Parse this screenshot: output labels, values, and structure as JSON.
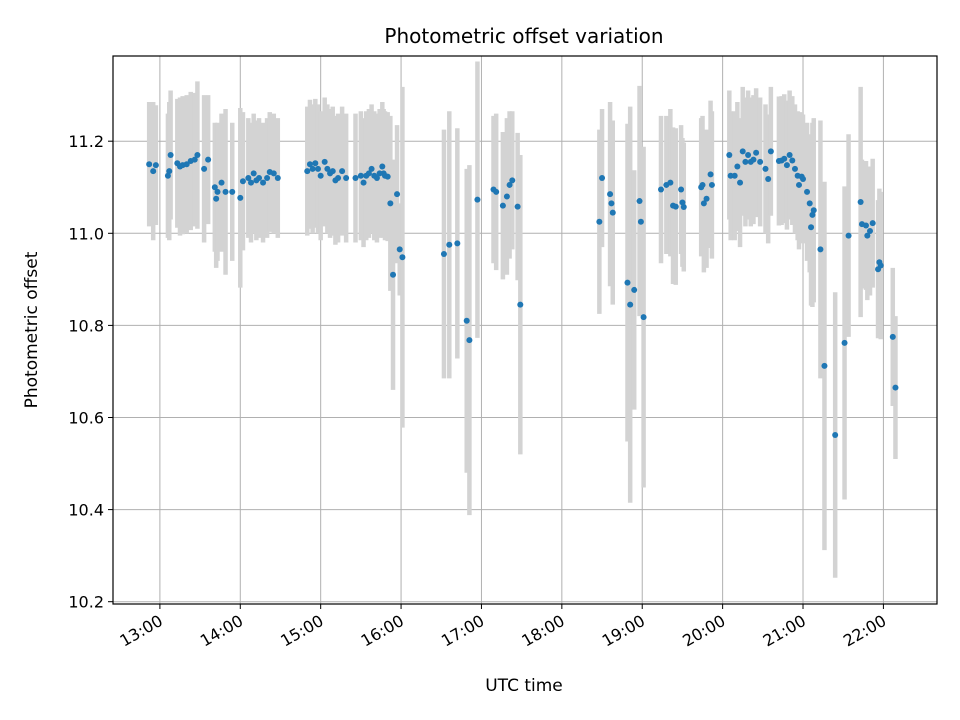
{
  "chart_data": {
    "type": "scatter",
    "title": "Photometric offset variation",
    "xlabel": "UTC time",
    "ylabel": "Photometric offset",
    "xlim": [
      "12:25",
      "22:40"
    ],
    "ylim": [
      10.195,
      11.385
    ],
    "grid": true,
    "x_ticks": [
      "13:00",
      "14:00",
      "15:00",
      "16:00",
      "17:00",
      "18:00",
      "19:00",
      "20:00",
      "21:00",
      "22:00"
    ],
    "y_ticks": [
      "10.2",
      "10.4",
      "10.6",
      "10.8",
      "11.0",
      "11.2"
    ],
    "colors": {
      "points": "#1f77b4",
      "error_bars": "#d3d3d3",
      "grid": "#b0b0b0"
    },
    "series": [
      {
        "points": [
          {
            "x": "12:52",
            "y": 11.15,
            "err": 0.135
          },
          {
            "x": "12:55",
            "y": 11.135,
            "err": 0.15
          },
          {
            "x": "12:57",
            "y": 11.148,
            "err": 0.13
          },
          {
            "x": "13:06",
            "y": 11.125,
            "err": 0.135
          },
          {
            "x": "13:07",
            "y": 11.135,
            "err": 0.15
          },
          {
            "x": "13:08",
            "y": 11.17,
            "err": 0.14
          },
          {
            "x": "13:13",
            "y": 11.152,
            "err": 0.14
          },
          {
            "x": "13:15",
            "y": 11.145,
            "err": 0.15
          },
          {
            "x": "13:17",
            "y": 11.148,
            "err": 0.15
          },
          {
            "x": "13:20",
            "y": 11.15,
            "err": 0.15
          },
          {
            "x": "13:23",
            "y": 11.157,
            "err": 0.15
          },
          {
            "x": "13:26",
            "y": 11.16,
            "err": 0.145
          },
          {
            "x": "13:28",
            "y": 11.17,
            "err": 0.16
          },
          {
            "x": "13:33",
            "y": 11.14,
            "err": 0.16
          },
          {
            "x": "13:36",
            "y": 11.16,
            "err": 0.14
          },
          {
            "x": "13:41",
            "y": 11.1,
            "err": 0.14
          },
          {
            "x": "13:42",
            "y": 11.075,
            "err": 0.15
          },
          {
            "x": "13:43",
            "y": 11.09,
            "err": 0.15
          },
          {
            "x": "13:46",
            "y": 11.11,
            "err": 0.15
          },
          {
            "x": "13:49",
            "y": 11.09,
            "err": 0.18
          },
          {
            "x": "13:54",
            "y": 11.09,
            "err": 0.15
          },
          {
            "x": "14:00",
            "y": 11.077,
            "err": 0.195
          },
          {
            "x": "14:02",
            "y": 11.113,
            "err": 0.15
          },
          {
            "x": "14:06",
            "y": 11.12,
            "err": 0.13
          },
          {
            "x": "14:08",
            "y": 11.11,
            "err": 0.13
          },
          {
            "x": "14:10",
            "y": 11.13,
            "err": 0.13
          },
          {
            "x": "14:12",
            "y": 11.115,
            "err": 0.13
          },
          {
            "x": "14:14",
            "y": 11.12,
            "err": 0.13
          },
          {
            "x": "14:17",
            "y": 11.11,
            "err": 0.13
          },
          {
            "x": "14:20",
            "y": 11.12,
            "err": 0.13
          },
          {
            "x": "14:22",
            "y": 11.133,
            "err": 0.13
          },
          {
            "x": "14:25",
            "y": 11.13,
            "err": 0.13
          },
          {
            "x": "14:28",
            "y": 11.12,
            "err": 0.13
          },
          {
            "x": "14:50",
            "y": 11.135,
            "err": 0.14
          },
          {
            "x": "14:52",
            "y": 11.15,
            "err": 0.14
          },
          {
            "x": "14:54",
            "y": 11.14,
            "err": 0.14
          },
          {
            "x": "14:56",
            "y": 11.152,
            "err": 0.14
          },
          {
            "x": "14:58",
            "y": 11.14,
            "err": 0.14
          },
          {
            "x": "15:00",
            "y": 11.125,
            "err": 0.14
          },
          {
            "x": "15:03",
            "y": 11.155,
            "err": 0.14
          },
          {
            "x": "15:05",
            "y": 11.14,
            "err": 0.14
          },
          {
            "x": "15:07",
            "y": 11.13,
            "err": 0.14
          },
          {
            "x": "15:09",
            "y": 11.135,
            "err": 0.14
          },
          {
            "x": "15:11",
            "y": 11.115,
            "err": 0.14
          },
          {
            "x": "15:13",
            "y": 11.12,
            "err": 0.14
          },
          {
            "x": "15:16",
            "y": 11.135,
            "err": 0.14
          },
          {
            "x": "15:19",
            "y": 11.12,
            "err": 0.14
          },
          {
            "x": "15:26",
            "y": 11.12,
            "err": 0.14
          },
          {
            "x": "15:30",
            "y": 11.125,
            "err": 0.14
          },
          {
            "x": "15:32",
            "y": 11.11,
            "err": 0.14
          },
          {
            "x": "15:34",
            "y": 11.125,
            "err": 0.14
          },
          {
            "x": "15:36",
            "y": 11.13,
            "err": 0.14
          },
          {
            "x": "15:38",
            "y": 11.14,
            "err": 0.14
          },
          {
            "x": "15:40",
            "y": 11.125,
            "err": 0.14
          },
          {
            "x": "15:42",
            "y": 11.12,
            "err": 0.14
          },
          {
            "x": "15:44",
            "y": 11.13,
            "err": 0.14
          },
          {
            "x": "15:46",
            "y": 11.145,
            "err": 0.14
          },
          {
            "x": "15:47",
            "y": 11.13,
            "err": 0.14
          },
          {
            "x": "15:48",
            "y": 11.125,
            "err": 0.14
          },
          {
            "x": "15:50",
            "y": 11.123,
            "err": 0.14
          },
          {
            "x": "15:52",
            "y": 11.065,
            "err": 0.19
          },
          {
            "x": "15:54",
            "y": 10.91,
            "err": 0.25
          },
          {
            "x": "15:57",
            "y": 11.085,
            "err": 0.15
          },
          {
            "x": "15:59",
            "y": 10.965,
            "err": 0.1
          },
          {
            "x": "16:01",
            "y": 10.948,
            "err": 0.37
          },
          {
            "x": "16:32",
            "y": 10.955,
            "err": 0.27
          },
          {
            "x": "16:36",
            "y": 10.975,
            "err": 0.29
          },
          {
            "x": "16:42",
            "y": 10.978,
            "err": 0.25
          },
          {
            "x": "16:49",
            "y": 10.81,
            "err": 0.33
          },
          {
            "x": "16:51",
            "y": 10.768,
            "err": 0.38
          },
          {
            "x": "16:57",
            "y": 11.073,
            "err": 0.3
          },
          {
            "x": "17:09",
            "y": 11.095,
            "err": 0.16
          },
          {
            "x": "17:11",
            "y": 11.09,
            "err": 0.17
          },
          {
            "x": "17:16",
            "y": 11.06,
            "err": 0.16
          },
          {
            "x": "17:19",
            "y": 11.08,
            "err": 0.17
          },
          {
            "x": "17:21",
            "y": 11.105,
            "err": 0.16
          },
          {
            "x": "17:23",
            "y": 11.115,
            "err": 0.15
          },
          {
            "x": "17:27",
            "y": 11.058,
            "err": 0.16
          },
          {
            "x": "17:29",
            "y": 10.845,
            "err": 0.325
          },
          {
            "x": "18:28",
            "y": 11.025,
            "err": 0.2
          },
          {
            "x": "18:30",
            "y": 11.12,
            "err": 0.15
          },
          {
            "x": "18:36",
            "y": 11.085,
            "err": 0.2
          },
          {
            "x": "18:37",
            "y": 11.065,
            "err": 0.15
          },
          {
            "x": "18:38",
            "y": 11.045,
            "err": 0.2
          },
          {
            "x": "18:49",
            "y": 10.893,
            "err": 0.345
          },
          {
            "x": "18:51",
            "y": 10.845,
            "err": 0.43
          },
          {
            "x": "18:54",
            "y": 10.877,
            "err": 0.26
          },
          {
            "x": "18:58",
            "y": 11.07,
            "err": 0.25
          },
          {
            "x": "18:59",
            "y": 11.025,
            "err": 0.14
          },
          {
            "x": "19:01",
            "y": 10.818,
            "err": 0.37
          },
          {
            "x": "19:14",
            "y": 11.095,
            "err": 0.16
          },
          {
            "x": "19:18",
            "y": 11.105,
            "err": 0.15
          },
          {
            "x": "19:21",
            "y": 11.11,
            "err": 0.16
          },
          {
            "x": "19:23",
            "y": 11.06,
            "err": 0.17
          },
          {
            "x": "19:25",
            "y": 11.058,
            "err": 0.17
          },
          {
            "x": "19:29",
            "y": 11.095,
            "err": 0.14
          },
          {
            "x": "19:30",
            "y": 11.067,
            "err": 0.14
          },
          {
            "x": "19:31",
            "y": 11.057,
            "err": 0.14
          },
          {
            "x": "19:44",
            "y": 11.1,
            "err": 0.15
          },
          {
            "x": "19:45",
            "y": 11.105,
            "err": 0.15
          },
          {
            "x": "19:46",
            "y": 11.065,
            "err": 0.15
          },
          {
            "x": "19:48",
            "y": 11.075,
            "err": 0.15
          },
          {
            "x": "19:51",
            "y": 11.128,
            "err": 0.16
          },
          {
            "x": "19:52",
            "y": 11.105,
            "err": 0.16
          },
          {
            "x": "20:05",
            "y": 11.17,
            "err": 0.14
          },
          {
            "x": "20:06",
            "y": 11.125,
            "err": 0.14
          },
          {
            "x": "20:09",
            "y": 11.125,
            "err": 0.14
          },
          {
            "x": "20:11",
            "y": 11.145,
            "err": 0.14
          },
          {
            "x": "20:13",
            "y": 11.11,
            "err": 0.14
          },
          {
            "x": "20:15",
            "y": 11.178,
            "err": 0.14
          },
          {
            "x": "20:17",
            "y": 11.155,
            "err": 0.14
          },
          {
            "x": "20:19",
            "y": 11.17,
            "err": 0.14
          },
          {
            "x": "20:21",
            "y": 11.155,
            "err": 0.14
          },
          {
            "x": "20:23",
            "y": 11.16,
            "err": 0.14
          },
          {
            "x": "20:25",
            "y": 11.175,
            "err": 0.14
          },
          {
            "x": "20:28",
            "y": 11.155,
            "err": 0.14
          },
          {
            "x": "20:32",
            "y": 11.14,
            "err": 0.14
          },
          {
            "x": "20:34",
            "y": 11.118,
            "err": 0.14
          },
          {
            "x": "20:36",
            "y": 11.178,
            "err": 0.14
          },
          {
            "x": "20:42",
            "y": 11.157,
            "err": 0.14
          },
          {
            "x": "20:44",
            "y": 11.158,
            "err": 0.14
          },
          {
            "x": "20:46",
            "y": 11.162,
            "err": 0.14
          },
          {
            "x": "20:48",
            "y": 11.148,
            "err": 0.14
          },
          {
            "x": "20:50",
            "y": 11.17,
            "err": 0.14
          },
          {
            "x": "20:52",
            "y": 11.158,
            "err": 0.14
          },
          {
            "x": "20:54",
            "y": 11.14,
            "err": 0.14
          },
          {
            "x": "20:56",
            "y": 11.125,
            "err": 0.14
          },
          {
            "x": "20:57",
            "y": 11.105,
            "err": 0.14
          },
          {
            "x": "20:59",
            "y": 11.123,
            "err": 0.14
          },
          {
            "x": "21:00",
            "y": 11.118,
            "err": 0.14
          },
          {
            "x": "21:03",
            "y": 11.09,
            "err": 0.15
          },
          {
            "x": "21:05",
            "y": 11.065,
            "err": 0.15
          },
          {
            "x": "21:06",
            "y": 11.013,
            "err": 0.17
          },
          {
            "x": "21:07",
            "y": 11.04,
            "err": 0.2
          },
          {
            "x": "21:08",
            "y": 11.05,
            "err": 0.2
          },
          {
            "x": "21:13",
            "y": 10.965,
            "err": 0.28
          },
          {
            "x": "21:16",
            "y": 10.712,
            "err": 0.4
          },
          {
            "x": "21:24",
            "y": 10.562,
            "err": 0.31
          },
          {
            "x": "21:31",
            "y": 10.762,
            "err": 0.34
          },
          {
            "x": "21:34",
            "y": 10.995,
            "err": 0.22
          },
          {
            "x": "21:43",
            "y": 11.068,
            "err": 0.25
          },
          {
            "x": "21:44",
            "y": 11.02,
            "err": 0.14
          },
          {
            "x": "21:47",
            "y": 11.017,
            "err": 0.14
          },
          {
            "x": "21:48",
            "y": 10.995,
            "err": 0.14
          },
          {
            "x": "21:50",
            "y": 11.005,
            "err": 0.14
          },
          {
            "x": "21:52",
            "y": 11.022,
            "err": 0.14
          },
          {
            "x": "21:56",
            "y": 10.922,
            "err": 0.15
          },
          {
            "x": "21:57",
            "y": 10.937,
            "err": 0.16
          },
          {
            "x": "21:58",
            "y": 10.93,
            "err": 0.16
          },
          {
            "x": "22:07",
            "y": 10.775,
            "err": 0.15
          },
          {
            "x": "22:09",
            "y": 10.665,
            "err": 0.155
          }
        ]
      }
    ]
  }
}
